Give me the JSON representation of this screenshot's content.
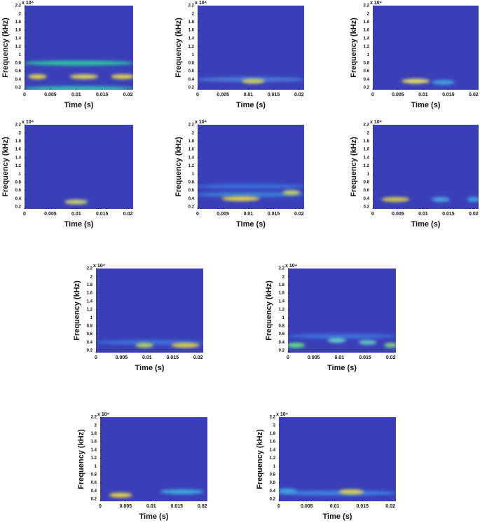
{
  "chart_data": [
    {
      "type": "spectrogram",
      "x_label": "Time (s)",
      "y_label": "Frequency (kHz)",
      "y_multiplier": "x 10⁴",
      "background": "#3a3fb8",
      "xlim": [
        0,
        0.021
      ],
      "ylim": [
        0.15,
        2.2
      ],
      "xticks": [
        0,
        0.005,
        0.01,
        0.015,
        0.02
      ],
      "yticks": [
        0.2,
        0.4,
        0.6,
        0.8,
        1,
        1.2,
        1.4,
        1.6,
        1.8,
        2,
        2.2
      ],
      "highlights": [
        {
          "x0": 0,
          "x1": 0.021,
          "y": 0.8,
          "color": "#2fc0a0"
        },
        {
          "x0": 0,
          "x1": 0.021,
          "y": 0.18,
          "color": "#30b8b0"
        },
        {
          "x0": 0.001,
          "x1": 0.004,
          "y": 0.47,
          "color": "#e0d050"
        },
        {
          "x0": 0.009,
          "x1": 0.014,
          "y": 0.47,
          "color": "#d8d058"
        },
        {
          "x0": 0.017,
          "x1": 0.021,
          "y": 0.47,
          "color": "#e0d050"
        }
      ]
    },
    {
      "type": "spectrogram",
      "x_label": "Time (s)",
      "y_label": "Frequency (kHz)",
      "y_multiplier": "x 10⁴",
      "background": "#3a3fb8",
      "xlim": [
        0,
        0.021
      ],
      "ylim": [
        0.15,
        2.2
      ],
      "xticks": [
        0,
        0.005,
        0.01,
        0.015,
        0.02
      ],
      "yticks": [
        0.2,
        0.4,
        0.6,
        0.8,
        1,
        1.2,
        1.4,
        1.6,
        1.8,
        2,
        2.2
      ],
      "highlights": [
        {
          "x0": 0,
          "x1": 0.021,
          "y": 0.4,
          "color": "#4a7ad8"
        },
        {
          "x0": 0.009,
          "x1": 0.013,
          "y": 0.36,
          "color": "#d0d060"
        }
      ]
    },
    {
      "type": "spectrogram",
      "x_label": "Time (s)",
      "y_label": "Frequency (kHz)",
      "y_multiplier": "x 10⁴",
      "background": "#3a3fb8",
      "xlim": [
        0,
        0.021
      ],
      "ylim": [
        0.15,
        2.2
      ],
      "xticks": [
        0,
        0.005,
        0.01,
        0.015,
        0.02
      ],
      "yticks": [
        0.2,
        0.4,
        0.6,
        0.8,
        1,
        1.2,
        1.4,
        1.6,
        1.8,
        2,
        2.2
      ],
      "highlights": [
        {
          "x0": 0.006,
          "x1": 0.011,
          "y": 0.36,
          "color": "#e0e060"
        },
        {
          "x0": 0.012,
          "x1": 0.016,
          "y": 0.33,
          "color": "#40a0e0"
        }
      ]
    },
    {
      "type": "spectrogram",
      "x_label": "Time (s)",
      "y_label": "Frequency (kHz)",
      "y_multiplier": "x 10⁴",
      "background": "#3a3fb8",
      "xlim": [
        0,
        0.021
      ],
      "ylim": [
        0.15,
        2.2
      ],
      "xticks": [
        0,
        0.005,
        0.01,
        0.015,
        0.02
      ],
      "yticks": [
        0.2,
        0.4,
        0.6,
        0.8,
        1,
        1.2,
        1.4,
        1.6,
        1.8,
        2,
        2.2
      ],
      "highlights": [
        {
          "x0": 0.008,
          "x1": 0.012,
          "y": 0.32,
          "color": "#c8d070"
        }
      ]
    },
    {
      "type": "spectrogram",
      "x_label": "Time (s)",
      "y_label": "Frequency (kHz)",
      "y_multiplier": "x 10⁴",
      "background": "#3a3fb8",
      "xlim": [
        0,
        0.021
      ],
      "ylim": [
        0.15,
        2.2
      ],
      "xticks": [
        0,
        0.005,
        0.01,
        0.015,
        0.02
      ],
      "yticks": [
        0.2,
        0.4,
        0.6,
        0.8,
        1,
        1.2,
        1.4,
        1.6,
        1.8,
        2,
        2.2
      ],
      "highlights": [
        {
          "x0": 0,
          "x1": 0.021,
          "y": 0.7,
          "color": "#3a70d8"
        },
        {
          "x0": 0,
          "x1": 0.021,
          "y": 0.5,
          "color": "#3a80d8"
        },
        {
          "x0": 0.005,
          "x1": 0.012,
          "y": 0.4,
          "color": "#e0d050"
        },
        {
          "x0": 0.017,
          "x1": 0.02,
          "y": 0.55,
          "color": "#c0d060"
        }
      ]
    },
    {
      "type": "spectrogram",
      "x_label": "Time (s)",
      "y_label": "Frequency (kHz)",
      "y_multiplier": "x 10⁴",
      "background": "#3a3fb8",
      "xlim": [
        0,
        0.021
      ],
      "ylim": [
        0.15,
        2.2
      ],
      "xticks": [
        0,
        0.005,
        0.01,
        0.015,
        0.02
      ],
      "yticks": [
        0.2,
        0.4,
        0.6,
        0.8,
        1,
        1.2,
        1.4,
        1.6,
        1.8,
        2,
        2.2
      ],
      "highlights": [
        {
          "x0": 0.002,
          "x1": 0.007,
          "y": 0.38,
          "color": "#d0c850"
        },
        {
          "x0": 0.012,
          "x1": 0.015,
          "y": 0.38,
          "color": "#50a0e0"
        },
        {
          "x0": 0.019,
          "x1": 0.021,
          "y": 0.38,
          "color": "#40a0e0"
        }
      ]
    },
    {
      "type": "spectrogram",
      "x_label": "Time (s)",
      "y_label": "Frequency (kHz)",
      "y_multiplier": "x 10⁴",
      "background": "#3a3fb8",
      "xlim": [
        0,
        0.021
      ],
      "ylim": [
        0.15,
        2.2
      ],
      "xticks": [
        0,
        0.005,
        0.01,
        0.015,
        0.02
      ],
      "yticks": [
        0.2,
        0.4,
        0.6,
        0.8,
        1,
        1.2,
        1.4,
        1.6,
        1.8,
        2,
        2.2
      ],
      "highlights": [
        {
          "x0": 0,
          "x1": 0.021,
          "y": 0.4,
          "color": "#3a70d8"
        },
        {
          "x0": 0.008,
          "x1": 0.011,
          "y": 0.33,
          "color": "#b0d060"
        },
        {
          "x0": 0.015,
          "x1": 0.02,
          "y": 0.33,
          "color": "#e0d050"
        }
      ]
    },
    {
      "type": "spectrogram",
      "x_label": "Time (s)",
      "y_label": "Frequency (kHz)",
      "y_multiplier": "x 10⁴",
      "background": "#3a3fb8",
      "xlim": [
        0,
        0.021
      ],
      "ylim": [
        0.15,
        2.2
      ],
      "xticks": [
        0,
        0.005,
        0.01,
        0.015,
        0.02
      ],
      "yticks": [
        0.2,
        0.4,
        0.6,
        0.8,
        1,
        1.2,
        1.4,
        1.6,
        1.8,
        2,
        2.2
      ],
      "highlights": [
        {
          "x0": 0,
          "x1": 0.021,
          "y": 0.55,
          "color": "#3a70d8"
        },
        {
          "x0": 0,
          "x1": 0.003,
          "y": 0.33,
          "color": "#60e080"
        },
        {
          "x0": 0.008,
          "x1": 0.011,
          "y": 0.45,
          "color": "#60d0c0"
        },
        {
          "x0": 0.014,
          "x1": 0.017,
          "y": 0.4,
          "color": "#60c0c0"
        },
        {
          "x0": 0.019,
          "x1": 0.021,
          "y": 0.33,
          "color": "#80d080"
        }
      ]
    },
    {
      "type": "spectrogram",
      "x_label": "Time (s)",
      "y_label": "Frequency (kHz)",
      "y_multiplier": "x 10⁴",
      "background": "#3a3fb8",
      "xlim": [
        0,
        0.021
      ],
      "ylim": [
        0.15,
        2.2
      ],
      "xticks": [
        0,
        0.005,
        0.01,
        0.015,
        0.02
      ],
      "yticks": [
        0.2,
        0.4,
        0.6,
        0.8,
        1,
        1.2,
        1.4,
        1.6,
        1.8,
        2,
        2.2
      ],
      "highlights": [
        {
          "x0": 0.002,
          "x1": 0.006,
          "y": 0.3,
          "color": "#e0d050"
        },
        {
          "x0": 0.012,
          "x1": 0.02,
          "y": 0.38,
          "color": "#40a8e0"
        }
      ]
    },
    {
      "type": "spectrogram",
      "x_label": "Time (s)",
      "y_label": "Frequency (kHz)",
      "y_multiplier": "x 10⁴",
      "background": "#3a3fb8",
      "xlim": [
        0,
        0.021
      ],
      "ylim": [
        0.15,
        2.2
      ],
      "xticks": [
        0,
        0.005,
        0.01,
        0.015,
        0.02
      ],
      "yticks": [
        0.2,
        0.4,
        0.6,
        0.8,
        1,
        1.2,
        1.4,
        1.6,
        1.8,
        2,
        2.2
      ],
      "highlights": [
        {
          "x0": 0,
          "x1": 0.021,
          "y": 0.35,
          "color": "#4080e0"
        },
        {
          "x0": 0,
          "x1": 0.003,
          "y": 0.4,
          "color": "#40a8e0"
        },
        {
          "x0": 0.011,
          "x1": 0.015,
          "y": 0.38,
          "color": "#e0d050"
        }
      ]
    }
  ]
}
